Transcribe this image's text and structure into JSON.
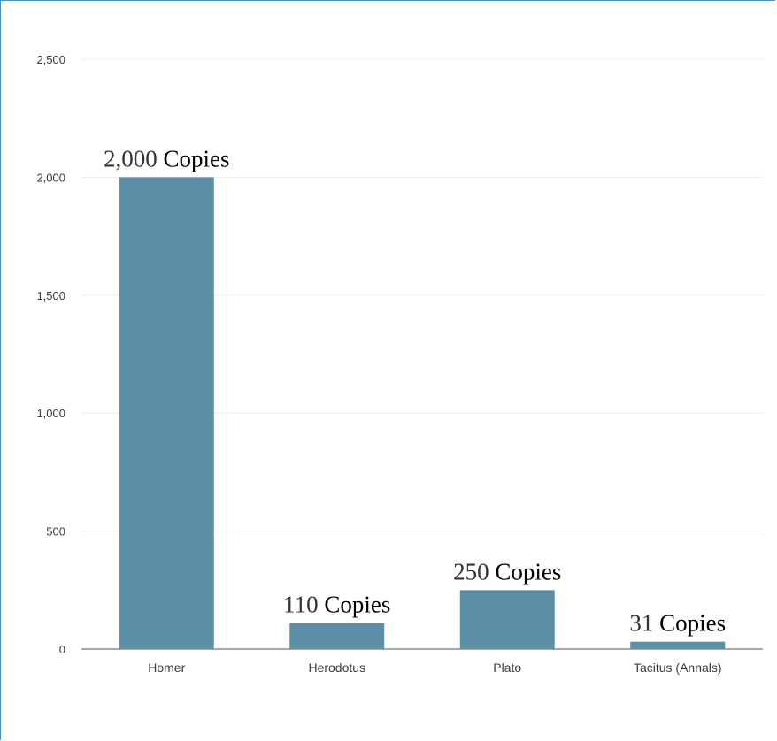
{
  "chart_data": {
    "type": "bar",
    "categories": [
      "Homer",
      "Herodotus",
      "Plato",
      "Tacitus (Annals)"
    ],
    "values": [
      2000,
      110,
      250,
      31
    ],
    "data_labels": [
      {
        "number": "2,000",
        "unit": "Copies"
      },
      {
        "number": "110",
        "unit": "Copies"
      },
      {
        "number": "250",
        "unit": "Copies"
      },
      {
        "number": "31",
        "unit": "Copies"
      }
    ],
    "yticks": [
      0,
      500,
      1000,
      1500,
      2000,
      2500
    ],
    "ytick_labels": [
      "0",
      "500",
      "1,000",
      "1,500",
      "2,000",
      "2,500"
    ],
    "ylim": [
      0,
      2500
    ],
    "grid": true,
    "bar_color": "#5b8fa8",
    "title": "",
    "xlabel": "",
    "ylabel": ""
  }
}
